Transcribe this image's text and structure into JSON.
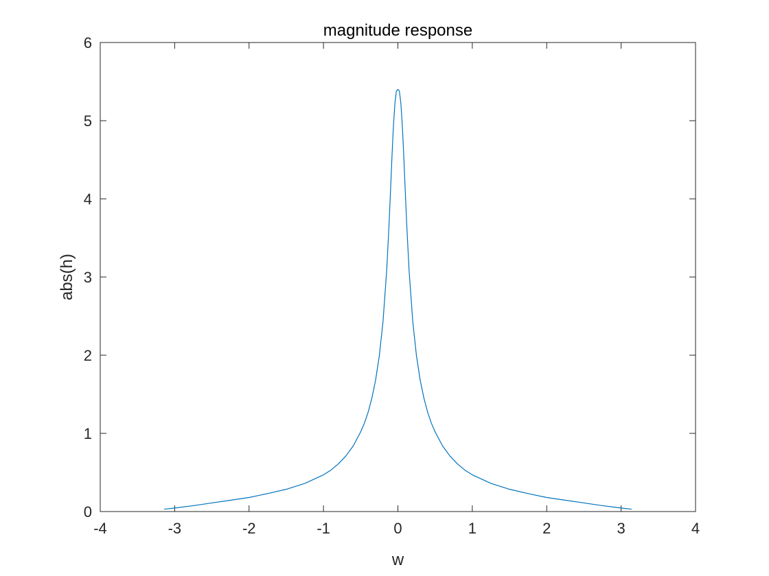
{
  "chart_data": {
    "type": "line",
    "title": "magnitude response",
    "xlabel": "w",
    "ylabel": "abs(h)",
    "xlim": [
      -4,
      4
    ],
    "ylim": [
      0,
      6
    ],
    "xticks": [
      "-4",
      "-3",
      "-2",
      "-1",
      "0",
      "1",
      "2",
      "3",
      "4"
    ],
    "yticks": [
      "0",
      "1",
      "2",
      "3",
      "4",
      "5",
      "6"
    ],
    "grid": false,
    "box": true,
    "series": [
      {
        "color": "#0072BD",
        "x": [
          -3.1416,
          -3.0,
          -2.75,
          -2.5,
          -2.25,
          -2.0,
          -1.75,
          -1.5,
          -1.25,
          -1.0,
          -0.9,
          -0.8,
          -0.7,
          -0.6,
          -0.5,
          -0.45,
          -0.4,
          -0.35,
          -0.3,
          -0.25,
          -0.2,
          -0.15,
          -0.12,
          -0.1,
          -0.08,
          -0.06,
          -0.04,
          -0.02,
          0.0,
          0.02,
          0.04,
          0.06,
          0.08,
          0.1,
          0.12,
          0.15,
          0.2,
          0.25,
          0.3,
          0.35,
          0.4,
          0.45,
          0.5,
          0.6,
          0.7,
          0.8,
          0.9,
          1.0,
          1.25,
          1.5,
          1.75,
          2.0,
          2.25,
          2.5,
          2.75,
          3.0,
          3.1416
        ],
        "y": [
          0.03,
          0.045,
          0.075,
          0.11,
          0.145,
          0.18,
          0.23,
          0.285,
          0.36,
          0.47,
          0.53,
          0.61,
          0.71,
          0.84,
          1.02,
          1.13,
          1.27,
          1.45,
          1.68,
          1.99,
          2.43,
          3.09,
          3.65,
          4.08,
          4.53,
          4.93,
          5.22,
          5.38,
          5.4,
          5.38,
          5.22,
          4.93,
          4.53,
          4.08,
          3.65,
          3.09,
          2.43,
          1.99,
          1.68,
          1.45,
          1.27,
          1.13,
          1.02,
          0.84,
          0.71,
          0.61,
          0.53,
          0.47,
          0.36,
          0.285,
          0.23,
          0.18,
          0.145,
          0.11,
          0.075,
          0.045,
          0.03
        ]
      }
    ]
  }
}
